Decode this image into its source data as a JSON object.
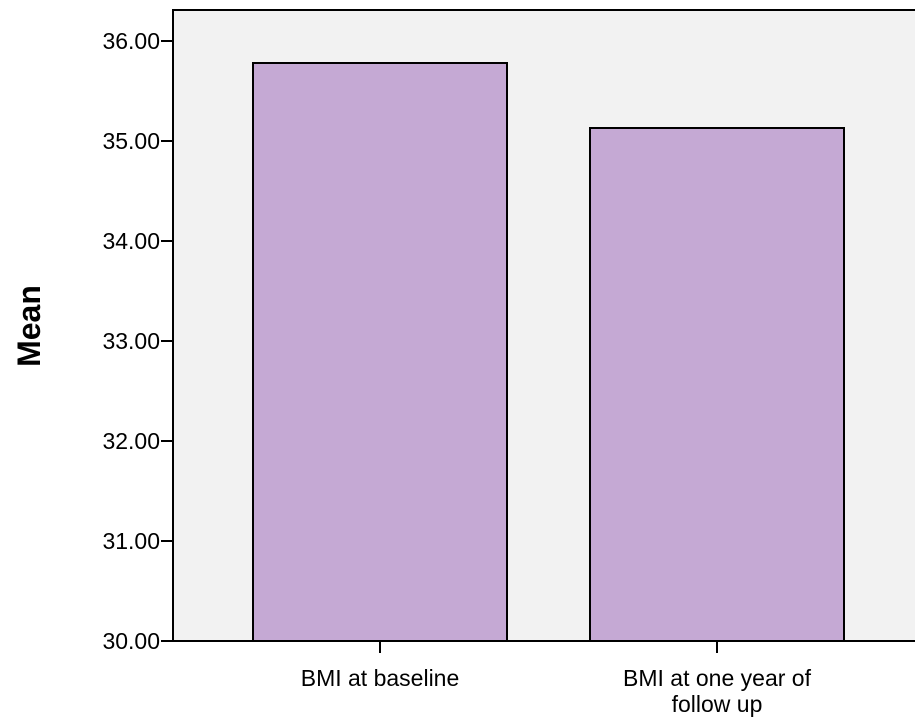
{
  "chart_data": {
    "type": "bar",
    "categories": [
      "BMI at baseline",
      "BMI at one year of follow up"
    ],
    "category_lines": [
      [
        "BMI at baseline"
      ],
      [
        "BMI at one year of",
        "follow up"
      ]
    ],
    "values": [
      35.78,
      35.13
    ],
    "ylabel": "Mean",
    "xlabel": "",
    "title": "",
    "ylim": [
      30,
      36.3
    ],
    "yticks": [
      30,
      31,
      32,
      33,
      34,
      35,
      36
    ],
    "ytick_labels": [
      "30.00",
      "31.00",
      "32.00",
      "33.00",
      "34.00",
      "35.00",
      "36.00"
    ],
    "grid": false,
    "legend": "none",
    "colors": {
      "bar_fill": "#c5a9d4",
      "bar_stroke": "#000000",
      "plot_background": "#f2f2f2",
      "axis": "#000000"
    }
  }
}
